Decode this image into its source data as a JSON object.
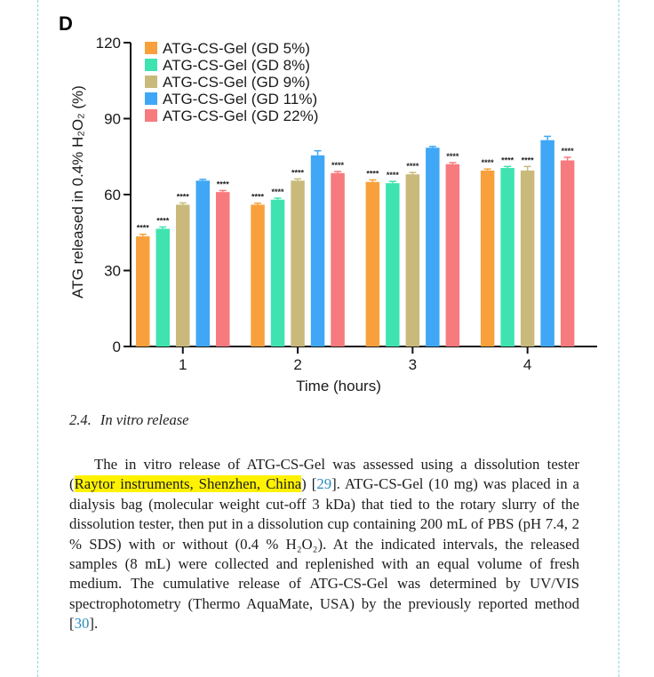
{
  "panel_letter": "D",
  "top_fragment": "· · · ·",
  "chart_data": {
    "type": "bar",
    "categories": [
      "1",
      "2",
      "3",
      "4"
    ],
    "xlabel": "Time (hours)",
    "ylabel": "ATG released in 0.4% H₂O₂ (%)",
    "ylim": [
      0,
      120
    ],
    "yticks": [
      0,
      30,
      60,
      90,
      120
    ],
    "grid": false,
    "legend_position": "top-left",
    "series": [
      {
        "name": "ATG-CS-Gel (GD 5%)",
        "color": "#F8A13C",
        "values": [
          43.5,
          56.0,
          65.0,
          69.5
        ],
        "errors": [
          0.8,
          0.6,
          0.8,
          0.6
        ],
        "stars": [
          "****",
          "****",
          "****",
          "****"
        ]
      },
      {
        "name": "ATG-CS-Gel (GD 8%)",
        "color": "#3FE3B0",
        "values": [
          46.5,
          58.0,
          64.5,
          70.5
        ],
        "errors": [
          0.7,
          0.6,
          0.7,
          0.6
        ],
        "stars": [
          "****",
          "****",
          "****",
          "****"
        ]
      },
      {
        "name": "ATG-CS-Gel (GD 9%)",
        "color": "#C9BA7C",
        "values": [
          56.0,
          65.5,
          68.0,
          69.5
        ],
        "errors": [
          0.7,
          0.7,
          0.7,
          1.6
        ],
        "stars": [
          "****",
          "****",
          "****",
          "****"
        ]
      },
      {
        "name": "ATG-CS-Gel (GD 11%)",
        "color": "#3FA7F5",
        "values": [
          65.5,
          75.5,
          78.5,
          81.5
        ],
        "errors": [
          0.5,
          1.8,
          0.5,
          1.5
        ],
        "stars": [
          "",
          "",
          "",
          ""
        ]
      },
      {
        "name": "ATG-CS-Gel (GD 22%)",
        "color": "#F77A7E",
        "values": [
          61.0,
          68.5,
          72.0,
          73.5
        ],
        "errors": [
          0.6,
          0.6,
          0.6,
          1.2
        ],
        "stars": [
          "****",
          "****",
          "****",
          "****"
        ]
      }
    ]
  },
  "section": {
    "number": "2.4.",
    "title": "In vitro release"
  },
  "paragraph": [
    {
      "text": "The in vitro release of ATG-CS-Gel was assessed using a dissolution tester ("
    },
    {
      "text": "Raytor instruments, Shenzhen, China",
      "style": "highlight"
    },
    {
      "text": ") ["
    },
    {
      "text": "29",
      "style": "cite"
    },
    {
      "text": "]. ATG-CS-Gel (10 mg) was placed in a dialysis bag (molecular weight cut-off 3 kDa) that tied to the rotary slurry of the dissolution tester, then put in a dissolution cup containing 200 mL of PBS (pH 7.4, 2 % SDS) with or without (0.4 % H₂O₂). At the indicated intervals, the released samples (8 mL) were collected and replenished with an equal volume of fresh medium. The cumulative release of ATG-CS-Gel was determined by UV/VIS spectrophotometry (Thermo AquaMate, USA) by the previously reported method ["
    },
    {
      "text": "30",
      "style": "cite"
    },
    {
      "text": "]."
    }
  ]
}
